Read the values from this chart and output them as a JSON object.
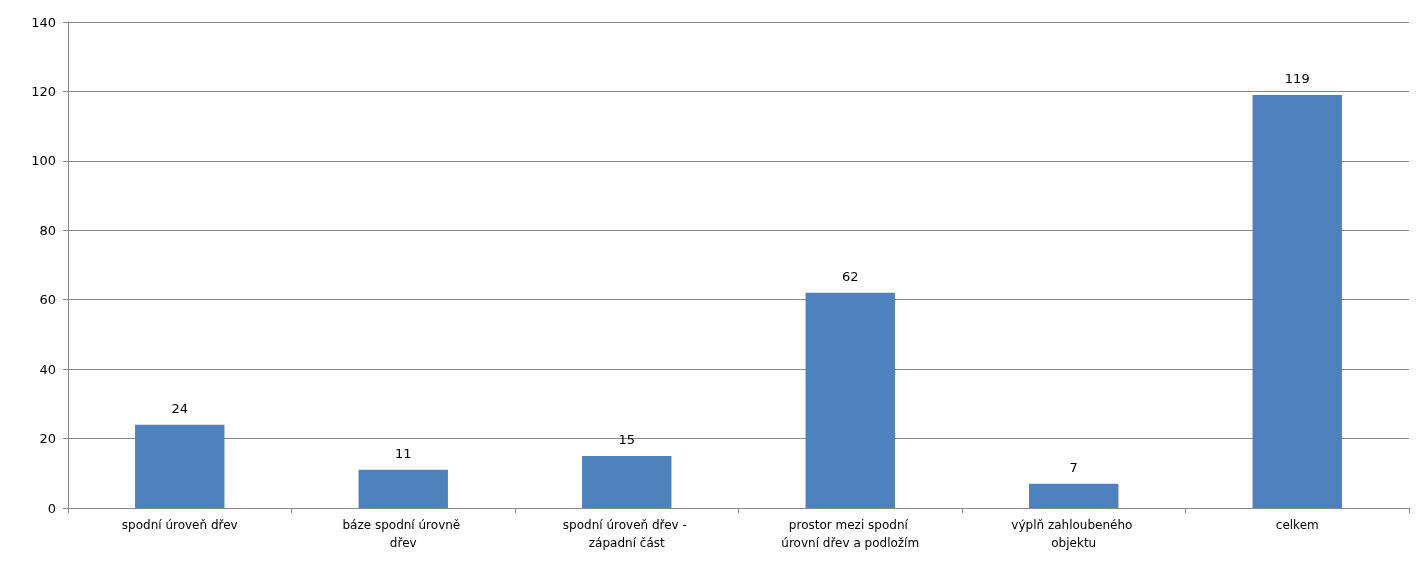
{
  "chart_data": {
    "type": "bar",
    "categories": [
      "spodní úroveň dřev",
      "báze spodní úrovně dřev",
      "spodní úroveň dřev - západní část",
      "prostor mezi spodní úrovní dřev a podložím",
      "výplň zahloubeného objektu",
      "celkem"
    ],
    "values": [
      24,
      11,
      15,
      62,
      7,
      119
    ],
    "color": "#4f81bd",
    "ylim": [
      0,
      140
    ],
    "yticks": [
      0,
      20,
      40,
      60,
      80,
      100,
      120,
      140
    ],
    "grid": "y",
    "data_labels": true
  }
}
